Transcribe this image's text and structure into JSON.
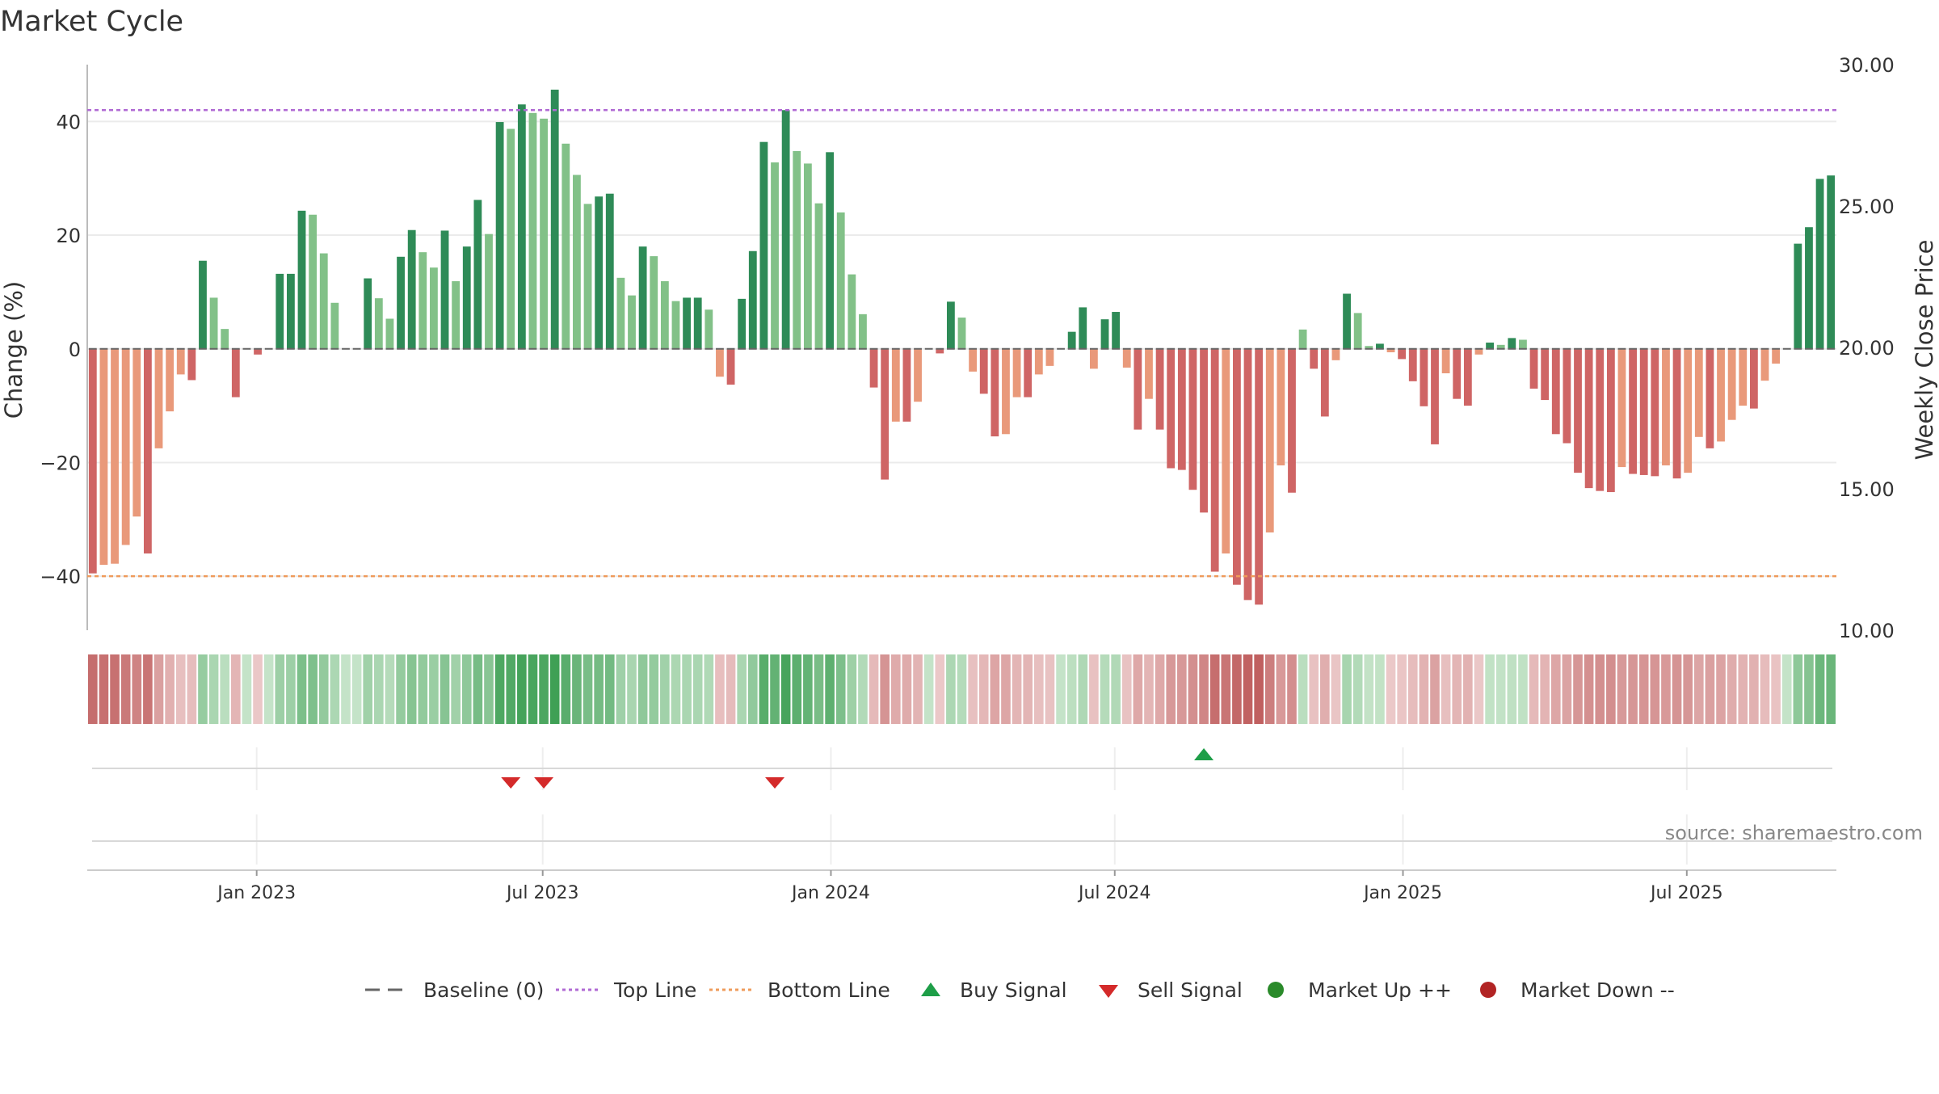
{
  "chart_data": {
    "type": "bar",
    "title": "Market Cycle",
    "ylabel": "Change (%)",
    "y2label": "Weekly Close Price",
    "ylim": [
      -49.5,
      50
    ],
    "y2lim": [
      10,
      30
    ],
    "yticks": [
      "40",
      "20",
      "0",
      "−20",
      "−40"
    ],
    "yticks_values": [
      40,
      20,
      0,
      -20,
      -40
    ],
    "y2ticks": [
      "30.00",
      "25.00",
      "20.00",
      "15.00",
      "10.00"
    ],
    "y2ticks_values": [
      30,
      25,
      20,
      15,
      10
    ],
    "xticks": [
      "Jan 2023",
      "Jul 2023",
      "Jan 2024",
      "Jul 2024",
      "Jan 2025",
      "Jul 2025"
    ],
    "xticks_week_index": [
      15.4,
      41.4,
      67.6,
      93.4,
      119.6,
      145.4
    ],
    "top_line": 42,
    "bottom_line": -40,
    "grid": true,
    "legend_position": "bottom-center",
    "source_text": "source: sharemaestro.com",
    "values": [
      -39.5,
      -38,
      -37.8,
      -34.5,
      -29.5,
      -36,
      -17.5,
      -11,
      -4.5,
      -5.5,
      15.5,
      9,
      3.5,
      -8.5,
      0,
      -1,
      0,
      13.2,
      13.2,
      24.3,
      23.6,
      16.8,
      8.1,
      0,
      0,
      12.4,
      8.9,
      5.3,
      16.2,
      20.9,
      17,
      14.3,
      20.8,
      11.9,
      18,
      26.2,
      20.2,
      39.9,
      38.7,
      43,
      41.5,
      40.5,
      45.6,
      36.1,
      30.6,
      25.5,
      26.8,
      27.3,
      12.5,
      9.4,
      18,
      16.3,
      11.9,
      8.4,
      9,
      9,
      6.9,
      -4.9,
      -6.3,
      8.8,
      17.2,
      36.4,
      32.8,
      42,
      34.8,
      32.6,
      25.6,
      34.6,
      24,
      13.1,
      6.1,
      -6.8,
      -23,
      -12.8,
      -12.8,
      -9.3,
      0,
      -0.8,
      8.3,
      5.5,
      -4,
      -7.9,
      -15.4,
      -15,
      -8.5,
      -8.5,
      -4.5,
      -3,
      0,
      3,
      7.3,
      -3.5,
      5.2,
      6.5,
      -3.3,
      -14.2,
      -8.8,
      -14.2,
      -21,
      -21.3,
      -24.8,
      -28.8,
      -39.2,
      -36,
      -41.5,
      -44.2,
      -45,
      -32.3,
      -20.5,
      -25.3,
      3.4,
      -3.5,
      -11.9,
      -2,
      9.7,
      6.3,
      0.5,
      0.9,
      -0.6,
      -1.8,
      -5.7,
      -10.1,
      -16.8,
      -4.3,
      -8.8,
      -10,
      -1,
      1.1,
      0.7,
      1.9,
      1.6,
      -7,
      -9,
      -15,
      -16.6,
      -21.8,
      -24.5,
      -25,
      -25.2,
      -20.8,
      -22,
      -22.2,
      -22.4,
      -20.5,
      -22.8,
      -21.8,
      -15.5,
      -17.5,
      -16.3,
      -12.5,
      -10,
      -10.5,
      -5.6,
      -2.6,
      0,
      18.5,
      21.4,
      29.9,
      30.5
    ],
    "colors": {
      "up_dark": "#2e8b57",
      "up_light": "#82c188",
      "down_dark": "#cf6565",
      "down_light": "#e9997a",
      "top_line": "#b06ad4",
      "bottom_line": "#ef9b5b",
      "baseline": "#666666",
      "buy": "#1e9e48",
      "sell": "#d42a2a",
      "market_up": "#2a8a2a",
      "market_down": "#b22424"
    },
    "buy_signals": [
      101
    ],
    "sell_signals": [
      38,
      41,
      62
    ],
    "legend": [
      {
        "label": "Baseline (0)",
        "symbol": "dash"
      },
      {
        "label": "Top Line",
        "symbol": "dotted-purple"
      },
      {
        "label": "Bottom Line",
        "symbol": "dotted-orange"
      },
      {
        "label": "Buy Signal",
        "symbol": "triangle-up"
      },
      {
        "label": "Sell Signal",
        "symbol": "triangle-down"
      },
      {
        "label": "Market Up ++",
        "symbol": "circle-green"
      },
      {
        "label": "Market Down --",
        "symbol": "circle-red"
      }
    ]
  }
}
